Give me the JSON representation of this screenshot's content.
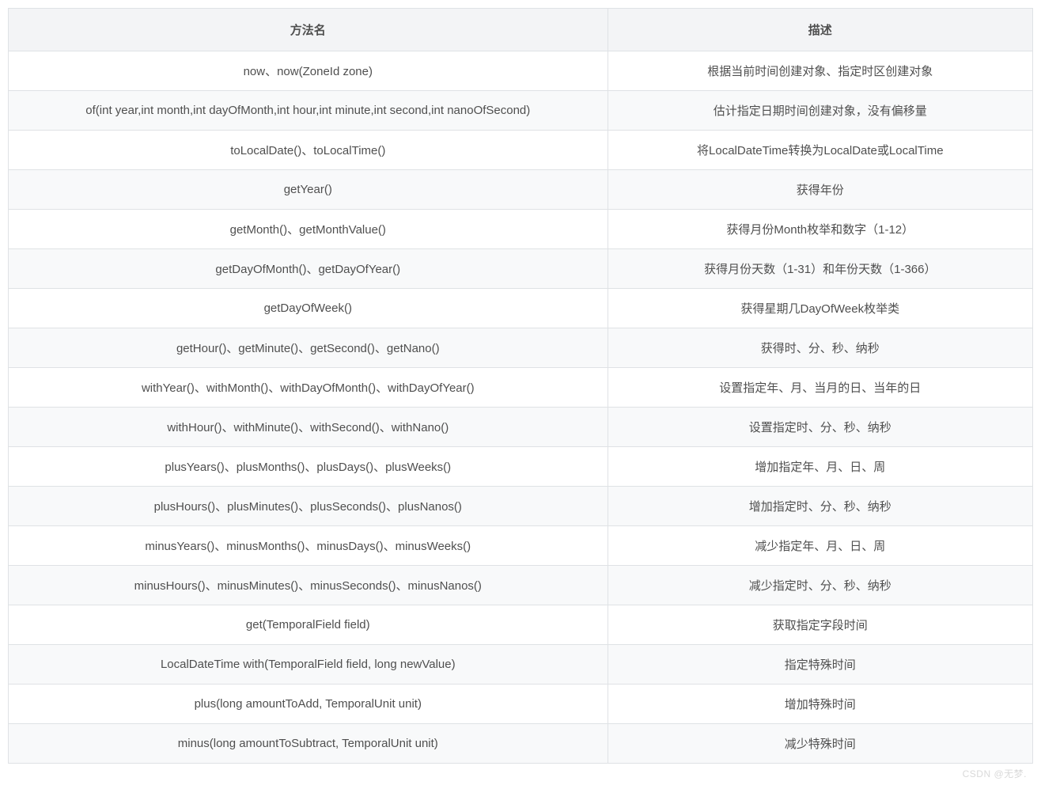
{
  "table": {
    "headers": {
      "method": "方法名",
      "description": "描述"
    },
    "rows": [
      {
        "method": "now、now(ZoneId zone)",
        "desc": "根据当前时间创建对象、指定时区创建对象"
      },
      {
        "method": "of(int year,int month,int dayOfMonth,int hour,int minute,int second,int nanoOfSecond)",
        "desc": "估计指定日期时间创建对象，没有偏移量"
      },
      {
        "method": "toLocalDate()、toLocalTime()",
        "desc": "将LocalDateTime转换为LocalDate或LocalTime"
      },
      {
        "method": "getYear()",
        "desc": "获得年份"
      },
      {
        "method": "getMonth()、getMonthValue()",
        "desc": "获得月份Month枚举和数字（1-12）"
      },
      {
        "method": "getDayOfMonth()、getDayOfYear()",
        "desc": "获得月份天数（1-31）和年份天数（1-366）"
      },
      {
        "method": "getDayOfWeek()",
        "desc": "获得星期几DayOfWeek枚举类"
      },
      {
        "method": "getHour()、getMinute()、getSecond()、getNano()",
        "desc": "获得时、分、秒、纳秒"
      },
      {
        "method": "withYear()、withMonth()、withDayOfMonth()、withDayOfYear()",
        "desc": "设置指定年、月、当月的日、当年的日"
      },
      {
        "method": "withHour()、withMinute()、withSecond()、withNano()",
        "desc": "设置指定时、分、秒、纳秒"
      },
      {
        "method": "plusYears()、plusMonths()、plusDays()、plusWeeks()",
        "desc": "增加指定年、月、日、周"
      },
      {
        "method": "plusHours()、plusMinutes()、plusSeconds()、plusNanos()",
        "desc": "增加指定时、分、秒、纳秒"
      },
      {
        "method": "minusYears()、minusMonths()、minusDays()、minusWeeks()",
        "desc": "减少指定年、月、日、周"
      },
      {
        "method": "minusHours()、minusMinutes()、minusSeconds()、minusNanos()",
        "desc": "减少指定时、分、秒、纳秒"
      },
      {
        "method": "get(TemporalField field)",
        "desc": "获取指定字段时间"
      },
      {
        "method": "LocalDateTime with(TemporalField field, long newValue)",
        "desc": "指定特殊时间"
      },
      {
        "method": "plus(long amountToAdd, TemporalUnit unit)",
        "desc": "增加特殊时间"
      },
      {
        "method": "minus(long amountToSubtract, TemporalUnit unit)",
        "desc": "减少特殊时间"
      }
    ]
  },
  "watermark": "CSDN @无梦."
}
